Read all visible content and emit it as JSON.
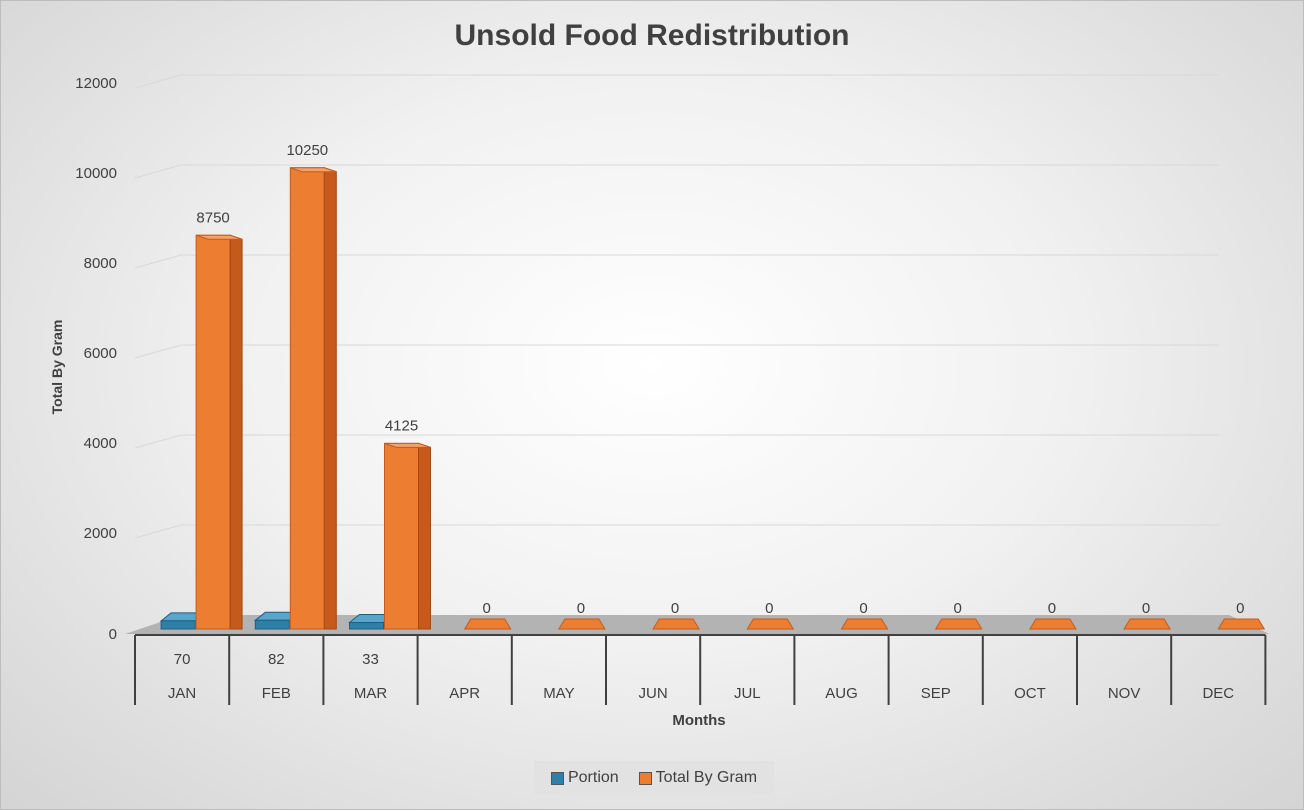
{
  "colors": {
    "portion": "#2f7fa8",
    "total": "#ed7d31",
    "total_side": "#c55a1c",
    "total_top": "#f4a26b",
    "axis_text": "#404040"
  },
  "chart_data": {
    "type": "bar",
    "title": "Unsold Food Redistribution",
    "xlabel": "Months",
    "ylabel": "Total By Gram",
    "ylim": [
      0,
      12000
    ],
    "yticks": [
      0,
      2000,
      4000,
      6000,
      8000,
      10000,
      12000
    ],
    "categories": [
      "JAN",
      "FEB",
      "MAR",
      "APR",
      "MAY",
      "JUN",
      "JUL",
      "AUG",
      "SEP",
      "OCT",
      "NOV",
      "DEC"
    ],
    "series": [
      {
        "name": "Portion",
        "values": [
          70,
          82,
          33,
          null,
          null,
          null,
          null,
          null,
          null,
          null,
          null,
          null
        ]
      },
      {
        "name": "Total By Gram",
        "values": [
          8750,
          10250,
          4125,
          0,
          0,
          0,
          0,
          0,
          0,
          0,
          0,
          0
        ]
      }
    ],
    "grid": true,
    "legend": "bottom",
    "view": "3d-column"
  }
}
